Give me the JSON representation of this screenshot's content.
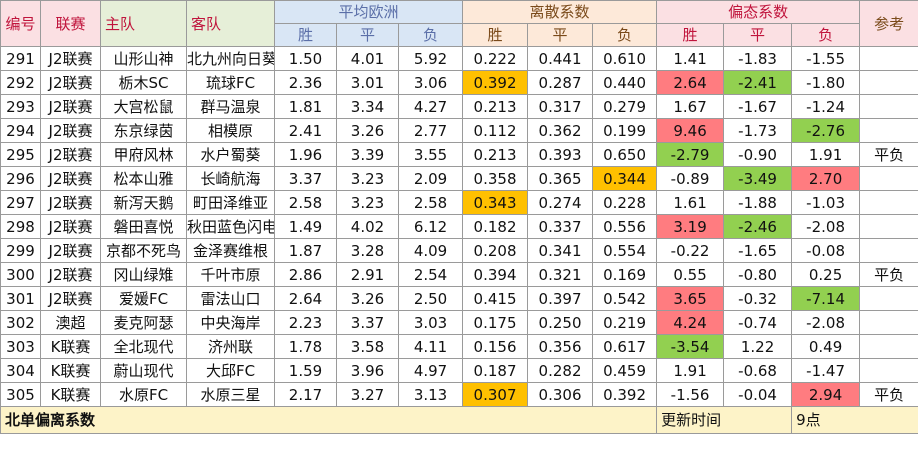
{
  "headers": {
    "id": "编号",
    "league": "联赛",
    "home": "主队",
    "away": "客队",
    "avg_group": "平均欧洲",
    "disp_group": "离散系数",
    "bias_group": "偏态系数",
    "ref": "参考",
    "sub": [
      "胜",
      "平",
      "负"
    ]
  },
  "rows": [
    {
      "id": "291",
      "league": "J2联赛",
      "home": "山形山神",
      "away": "北九州向日葵",
      "avg": [
        "1.50",
        "4.01",
        "5.92"
      ],
      "disp": [
        "0.222",
        "0.441",
        "0.610"
      ],
      "bias": [
        "1.41",
        "-1.83",
        "-1.55"
      ],
      "ref": "",
      "disp_hl": [
        "",
        "",
        ""
      ],
      "bias_hl": [
        "",
        "",
        ""
      ]
    },
    {
      "id": "292",
      "league": "J2联赛",
      "home": "栃木SC",
      "away": "琉球FC",
      "avg": [
        "2.36",
        "3.01",
        "3.06"
      ],
      "disp": [
        "0.392",
        "0.287",
        "0.440"
      ],
      "bias": [
        "2.64",
        "-2.41",
        "-1.80"
      ],
      "ref": "",
      "disp_hl": [
        "orange",
        "",
        ""
      ],
      "bias_hl": [
        "red",
        "green",
        ""
      ]
    },
    {
      "id": "293",
      "league": "J2联赛",
      "home": "大宫松鼠",
      "away": "群马温泉",
      "avg": [
        "1.81",
        "3.34",
        "4.27"
      ],
      "disp": [
        "0.213",
        "0.317",
        "0.279"
      ],
      "bias": [
        "1.67",
        "-1.67",
        "-1.24"
      ],
      "ref": "",
      "disp_hl": [
        "",
        "",
        ""
      ],
      "bias_hl": [
        "",
        "",
        ""
      ]
    },
    {
      "id": "294",
      "league": "J2联赛",
      "home": "东京绿茵",
      "away": "相模原",
      "avg": [
        "2.41",
        "3.26",
        "2.77"
      ],
      "disp": [
        "0.112",
        "0.362",
        "0.199"
      ],
      "bias": [
        "9.46",
        "-1.73",
        "-2.76"
      ],
      "ref": "",
      "disp_hl": [
        "",
        "",
        ""
      ],
      "bias_hl": [
        "red",
        "",
        "green"
      ]
    },
    {
      "id": "295",
      "league": "J2联赛",
      "home": "甲府风林",
      "away": "水户蜀葵",
      "avg": [
        "1.96",
        "3.39",
        "3.55"
      ],
      "disp": [
        "0.213",
        "0.393",
        "0.650"
      ],
      "bias": [
        "-2.79",
        "-0.90",
        "1.91"
      ],
      "ref": "平负",
      "disp_hl": [
        "",
        "",
        ""
      ],
      "bias_hl": [
        "green",
        "",
        ""
      ]
    },
    {
      "id": "296",
      "league": "J2联赛",
      "home": "松本山雅",
      "away": "长崎航海",
      "avg": [
        "3.37",
        "3.23",
        "2.09"
      ],
      "disp": [
        "0.358",
        "0.365",
        "0.344"
      ],
      "bias": [
        "-0.89",
        "-3.49",
        "2.70"
      ],
      "ref": "",
      "disp_hl": [
        "",
        "",
        "orange"
      ],
      "bias_hl": [
        "",
        "green",
        "red"
      ]
    },
    {
      "id": "297",
      "league": "J2联赛",
      "home": "新泻天鹅",
      "away": "町田泽维亚",
      "avg": [
        "2.58",
        "3.23",
        "2.58"
      ],
      "disp": [
        "0.343",
        "0.274",
        "0.228"
      ],
      "bias": [
        "1.61",
        "-1.88",
        "-1.03"
      ],
      "ref": "",
      "disp_hl": [
        "orange",
        "",
        ""
      ],
      "bias_hl": [
        "",
        "",
        ""
      ]
    },
    {
      "id": "298",
      "league": "J2联赛",
      "home": "磐田喜悦",
      "away": "秋田蓝色闪电",
      "avg": [
        "1.49",
        "4.02",
        "6.12"
      ],
      "disp": [
        "0.182",
        "0.337",
        "0.556"
      ],
      "bias": [
        "3.19",
        "-2.46",
        "-2.08"
      ],
      "ref": "",
      "disp_hl": [
        "",
        "",
        ""
      ],
      "bias_hl": [
        "red",
        "green",
        ""
      ]
    },
    {
      "id": "299",
      "league": "J2联赛",
      "home": "京都不死鸟",
      "away": "金泽赛维根",
      "avg": [
        "1.87",
        "3.28",
        "4.09"
      ],
      "disp": [
        "0.208",
        "0.341",
        "0.554"
      ],
      "bias": [
        "-0.22",
        "-1.65",
        "-0.08"
      ],
      "ref": "",
      "disp_hl": [
        "",
        "",
        ""
      ],
      "bias_hl": [
        "",
        "",
        ""
      ]
    },
    {
      "id": "300",
      "league": "J2联赛",
      "home": "冈山绿雉",
      "away": "千叶市原",
      "avg": [
        "2.86",
        "2.91",
        "2.54"
      ],
      "disp": [
        "0.394",
        "0.321",
        "0.169"
      ],
      "bias": [
        "0.55",
        "-0.80",
        "0.25"
      ],
      "ref": "平负",
      "disp_hl": [
        "",
        "",
        ""
      ],
      "bias_hl": [
        "",
        "",
        ""
      ]
    },
    {
      "id": "301",
      "league": "J2联赛",
      "home": "爱媛FC",
      "away": "雷法山口",
      "avg": [
        "2.64",
        "3.26",
        "2.50"
      ],
      "disp": [
        "0.415",
        "0.397",
        "0.542"
      ],
      "bias": [
        "3.65",
        "-0.32",
        "-7.14"
      ],
      "ref": "",
      "disp_hl": [
        "",
        "",
        ""
      ],
      "bias_hl": [
        "red",
        "",
        "green"
      ]
    },
    {
      "id": "302",
      "league": "澳超",
      "home": "麦克阿瑟",
      "away": "中央海岸",
      "avg": [
        "2.23",
        "3.37",
        "3.03"
      ],
      "disp": [
        "0.175",
        "0.250",
        "0.219"
      ],
      "bias": [
        "4.24",
        "-0.74",
        "-2.08"
      ],
      "ref": "",
      "disp_hl": [
        "",
        "",
        ""
      ],
      "bias_hl": [
        "red",
        "",
        ""
      ]
    },
    {
      "id": "303",
      "league": "K联赛",
      "home": "全北现代",
      "away": "济州联",
      "avg": [
        "1.78",
        "3.58",
        "4.11"
      ],
      "disp": [
        "0.156",
        "0.356",
        "0.617"
      ],
      "bias": [
        "-3.54",
        "1.22",
        "0.49"
      ],
      "ref": "",
      "disp_hl": [
        "",
        "",
        ""
      ],
      "bias_hl": [
        "green",
        "",
        ""
      ]
    },
    {
      "id": "304",
      "league": "K联赛",
      "home": "蔚山现代",
      "away": "大邱FC",
      "avg": [
        "1.59",
        "3.96",
        "4.97"
      ],
      "disp": [
        "0.187",
        "0.282",
        "0.459"
      ],
      "bias": [
        "1.91",
        "-0.68",
        "-1.47"
      ],
      "ref": "",
      "disp_hl": [
        "",
        "",
        ""
      ],
      "bias_hl": [
        "",
        "",
        ""
      ]
    },
    {
      "id": "305",
      "league": "K联赛",
      "home": "水原FC",
      "away": "水原三星",
      "avg": [
        "2.17",
        "3.27",
        "3.13"
      ],
      "disp": [
        "0.307",
        "0.306",
        "0.392"
      ],
      "bias": [
        "-1.56",
        "-0.04",
        "2.94"
      ],
      "ref": "平负",
      "disp_hl": [
        "orange",
        "",
        ""
      ],
      "bias_hl": [
        "",
        "",
        "red"
      ]
    }
  ],
  "footer": {
    "title": "北单偏离系数",
    "update_label": "更新时间",
    "update_value": "9点"
  }
}
